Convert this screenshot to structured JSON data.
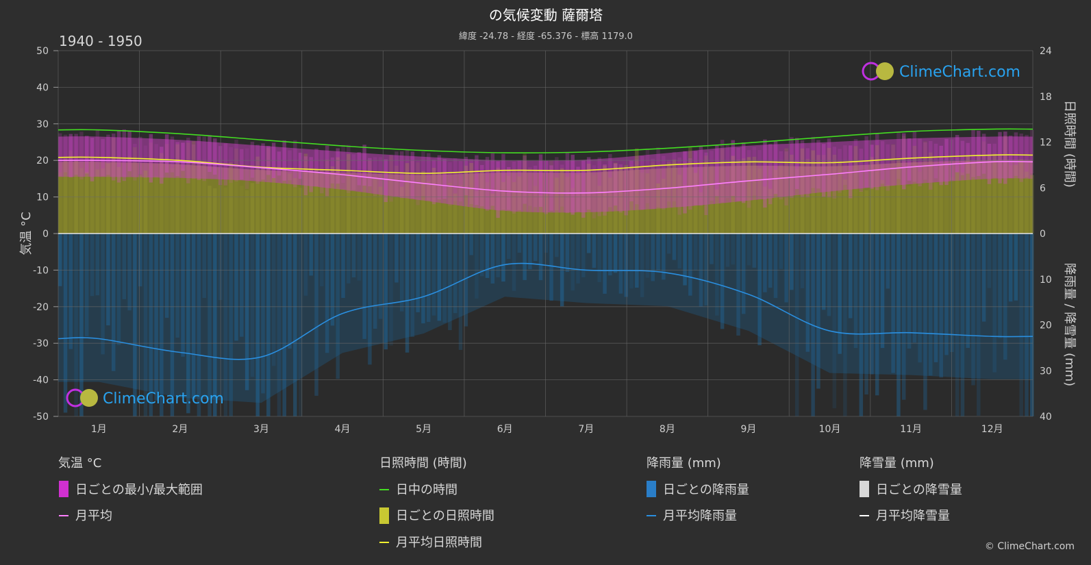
{
  "header": {
    "title": "の気候変動 薩爾塔",
    "subtitle": "緯度 -24.78 - 経度 -65.376 - 標高 1179.0",
    "period": "1940 - 1950"
  },
  "logo_text": "ClimeChart.com",
  "copyright": "© ClimeChart.com",
  "legend": {
    "temperature": {
      "heading": "気温 °C",
      "range": "日ごとの最小/最大範囲",
      "mean": "月平均"
    },
    "sunshine": {
      "heading": "日照時間 (時間)",
      "daylight": "日中の時間",
      "daily": "日ごとの日照時間",
      "mean": "月平均日照時間"
    },
    "rain": {
      "heading": "降雨量 (mm)",
      "daily": "日ごとの降雨量",
      "mean": "月平均降雨量"
    },
    "snow": {
      "heading": "降雪量 (mm)",
      "daily": "日ごとの降雪量",
      "mean": "月平均降雪量"
    }
  },
  "colors": {
    "background": "#2e2e2e",
    "daylight": "#44dd22",
    "sunshine_mean": "#f2f230",
    "sunshine_fill": "#8c8c28",
    "temp_range": "#d040c8",
    "temp_mean": "#ff80ff",
    "rain_fill": "#1e5f8c",
    "rain_mean": "#2a8fe0",
    "snow": "#ffffff"
  },
  "chart_data": {
    "type": "line",
    "categories": [
      "1月",
      "2月",
      "3月",
      "4月",
      "5月",
      "6月",
      "7月",
      "8月",
      "9月",
      "10月",
      "11月",
      "12月"
    ],
    "axes": {
      "left": {
        "label": "気温 °C",
        "ticks": [
          "50",
          "40",
          "30",
          "20",
          "10",
          "0",
          "-10",
          "-20",
          "-30",
          "-40",
          "-50"
        ],
        "range": [
          -50,
          50
        ]
      },
      "right_top": {
        "label": "日照時間 (時間)",
        "ticks": [
          "24",
          "18",
          "12",
          "6",
          "0"
        ],
        "range": [
          0,
          24
        ]
      },
      "right_bottom": {
        "label": "降雨量 / 降雪量 (mm)",
        "ticks": [
          "0",
          "10",
          "20",
          "30",
          "40"
        ],
        "range": [
          0,
          40
        ]
      }
    },
    "series": [
      {
        "key": "daylight",
        "unit": "hours",
        "values": [
          13.6,
          13.1,
          12.3,
          11.5,
          10.9,
          10.6,
          10.7,
          11.2,
          11.9,
          12.7,
          13.4,
          13.7
        ]
      },
      {
        "key": "sunshine_mean",
        "unit": "hours",
        "values": [
          10.0,
          9.6,
          8.7,
          8.3,
          7.9,
          8.3,
          8.3,
          9.0,
          9.4,
          9.3,
          9.9,
          10.3
        ]
      },
      {
        "key": "temp_mean",
        "unit": "°C",
        "values": [
          20.0,
          19.6,
          18.0,
          16.1,
          13.7,
          11.6,
          11.1,
          12.4,
          14.4,
          16.2,
          18.2,
          19.6
        ]
      },
      {
        "key": "temp_max",
        "unit": "°C",
        "values": [
          26.5,
          25.6,
          24.0,
          22.4,
          21.0,
          20.0,
          20.2,
          22.0,
          24.0,
          25.0,
          26.0,
          26.5
        ]
      },
      {
        "key": "temp_min",
        "unit": "°C",
        "values": [
          15.5,
          15.2,
          14.2,
          12.0,
          9.0,
          6.2,
          5.8,
          7.0,
          9.0,
          11.5,
          13.5,
          15.0
        ]
      },
      {
        "key": "rain_mean",
        "unit": "mm",
        "values": [
          23.0,
          26.0,
          27.0,
          17.5,
          13.8,
          6.8,
          8.0,
          8.6,
          13.3,
          21.3,
          21.7,
          22.5
        ]
      }
    ]
  }
}
